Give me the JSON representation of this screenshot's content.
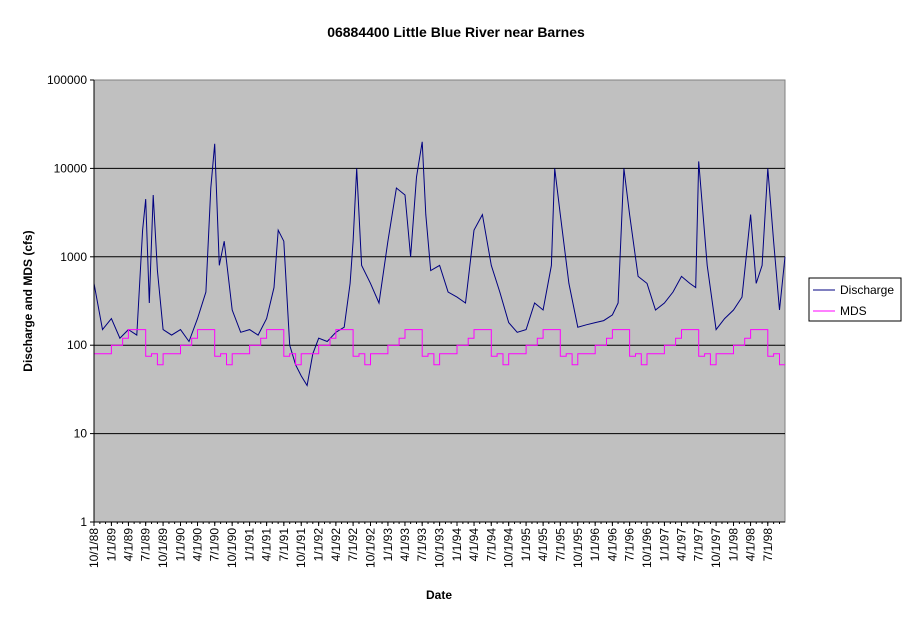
{
  "chart_data": {
    "type": "line",
    "title": "06884400 Little Blue River near Barnes",
    "xlabel": "Date",
    "ylabel": "Discharge and MDS (cfs)",
    "yscale": "log",
    "ylim": [
      1,
      100000
    ],
    "y_ticks": [
      "1",
      "10",
      "100",
      "1000",
      "10000",
      "100000"
    ],
    "x_ticks": [
      "10/1/88",
      "1/1/89",
      "4/1/89",
      "7/1/89",
      "10/1/89",
      "1/1/90",
      "4/1/90",
      "7/1/90",
      "10/1/90",
      "1/1/91",
      "4/1/91",
      "7/1/91",
      "10/1/91",
      "1/1/92",
      "4/1/92",
      "7/1/92",
      "10/1/92",
      "1/1/93",
      "4/1/93",
      "7/1/93",
      "10/1/93",
      "1/1/94",
      "4/1/94",
      "7/1/94",
      "10/1/94",
      "1/1/95",
      "4/1/95",
      "7/1/95",
      "10/1/95",
      "1/1/96",
      "4/1/96",
      "7/1/96",
      "10/1/96",
      "1/1/97",
      "4/1/97",
      "7/1/97",
      "10/1/97",
      "1/1/98",
      "4/1/98",
      "7/1/98"
    ],
    "grid": "horizontal",
    "plot_background": "#C0C0C0",
    "legend": {
      "position": "right"
    },
    "series": [
      {
        "name": "Discharge",
        "color": "#000080",
        "x": [
          "10/1/88",
          "11/15/88",
          "1/1/89",
          "2/15/89",
          "4/1/89",
          "5/15/89",
          "6/15/89",
          "7/1/89",
          "7/20/89",
          "8/10/89",
          "9/1/89",
          "10/1/89",
          "11/15/89",
          "1/1/90",
          "2/15/90",
          "4/1/90",
          "5/15/90",
          "6/10/90",
          "7/1/90",
          "7/25/90",
          "8/20/90",
          "10/1/90",
          "11/15/90",
          "1/1/91",
          "2/15/91",
          "4/1/91",
          "5/10/91",
          "6/1/91",
          "7/1/91",
          "8/1/91",
          "9/1/91",
          "10/1/91",
          "11/1/91",
          "12/1/91",
          "1/1/92",
          "2/15/92",
          "4/1/92",
          "5/15/92",
          "6/15/92",
          "7/1/92",
          "7/20/92",
          "8/15/92",
          "10/1/92",
          "11/15/92",
          "1/1/93",
          "2/15/93",
          "4/1/93",
          "5/1/93",
          "6/1/93",
          "7/1/93",
          "7/20/93",
          "8/15/93",
          "10/1/93",
          "11/15/93",
          "1/1/94",
          "2/15/94",
          "4/1/94",
          "5/15/94",
          "7/1/94",
          "8/15/94",
          "10/1/94",
          "11/15/94",
          "1/1/95",
          "2/15/95",
          "4/1/95",
          "5/15/95",
          "6/1/95",
          "7/1/95",
          "8/15/95",
          "10/1/95",
          "11/15/95",
          "1/1/96",
          "2/15/96",
          "4/1/96",
          "5/1/96",
          "6/1/96",
          "7/1/96",
          "8/15/96",
          "10/1/96",
          "11/15/96",
          "1/1/97",
          "2/15/97",
          "4/1/97",
          "5/15/97",
          "6/15/97",
          "7/1/97",
          "8/15/97",
          "10/1/97",
          "11/15/97",
          "1/1/98",
          "2/15/98",
          "4/1/98",
          "5/1/98",
          "6/1/98",
          "7/1/98",
          "8/1/98",
          "9/1/98",
          "9/30/98"
        ],
        "values": [
          500,
          150,
          200,
          120,
          150,
          130,
          2000,
          4500,
          300,
          5000,
          700,
          150,
          130,
          150,
          110,
          200,
          400,
          6000,
          19000,
          800,
          1500,
          250,
          140,
          150,
          130,
          200,
          450,
          2000,
          1500,
          100,
          60,
          45,
          35,
          80,
          120,
          110,
          140,
          160,
          500,
          1500,
          10000,
          800,
          500,
          300,
          1500,
          6000,
          5000,
          1000,
          8000,
          20000,
          3000,
          700,
          800,
          400,
          350,
          300,
          2000,
          3000,
          800,
          400,
          180,
          140,
          150,
          300,
          250,
          800,
          10000,
          3000,
          500,
          160,
          170,
          180,
          190,
          220,
          300,
          10000,
          3000,
          600,
          500,
          250,
          300,
          400,
          600,
          500,
          450,
          12000,
          800,
          150,
          200,
          250,
          350,
          3000,
          500,
          800,
          10000,
          1500,
          250,
          1000
        ]
      },
      {
        "name": "MDS",
        "color": "#FF00FF",
        "x": [
          "10/1/88",
          "11/1/88",
          "12/1/88",
          "1/1/89",
          "2/1/89",
          "3/1/89",
          "4/1/89",
          "5/1/89",
          "6/1/89",
          "7/1/89",
          "8/1/89",
          "9/1/89",
          "10/1/89",
          "11/1/89",
          "12/1/89",
          "1/1/90",
          "2/1/90",
          "3/1/90",
          "4/1/90",
          "5/1/90",
          "6/1/90",
          "7/1/90",
          "8/1/90",
          "9/1/90",
          "10/1/90",
          "11/1/90",
          "12/1/90",
          "1/1/91",
          "2/1/91",
          "3/1/91",
          "4/1/91",
          "5/1/91",
          "6/1/91",
          "7/1/91",
          "8/1/91",
          "9/1/91",
          "10/1/91",
          "11/1/91",
          "12/1/91",
          "1/1/92",
          "2/1/92",
          "3/1/92",
          "4/1/92",
          "5/1/92",
          "6/1/92",
          "7/1/92",
          "8/1/92",
          "9/1/92",
          "10/1/92",
          "11/1/92",
          "12/1/92",
          "1/1/93",
          "2/1/93",
          "3/1/93",
          "4/1/93",
          "5/1/93",
          "6/1/93",
          "7/1/93",
          "8/1/93",
          "9/1/93",
          "10/1/93",
          "11/1/93",
          "12/1/93",
          "1/1/94",
          "2/1/94",
          "3/1/94",
          "4/1/94",
          "5/1/94",
          "6/1/94",
          "7/1/94",
          "8/1/94",
          "9/1/94",
          "10/1/94",
          "11/1/94",
          "12/1/94",
          "1/1/95",
          "2/1/95",
          "3/1/95",
          "4/1/95",
          "5/1/95",
          "6/1/95",
          "7/1/95",
          "8/1/95",
          "9/1/95",
          "10/1/95",
          "11/1/95",
          "12/1/95",
          "1/1/96",
          "2/1/96",
          "3/1/96",
          "4/1/96",
          "5/1/96",
          "6/1/96",
          "7/1/96",
          "8/1/96",
          "9/1/96",
          "10/1/96",
          "11/1/96",
          "12/1/96",
          "1/1/97",
          "2/1/97",
          "3/1/97",
          "4/1/97",
          "5/1/97",
          "6/1/97",
          "7/1/97",
          "8/1/97",
          "9/1/97",
          "10/1/97",
          "11/1/97",
          "12/1/97",
          "1/1/98",
          "2/1/98",
          "3/1/98",
          "4/1/98",
          "5/1/98",
          "6/1/98",
          "7/1/98",
          "8/1/98",
          "9/1/98",
          "9/30/98"
        ],
        "values": [
          80,
          80,
          80,
          100,
          100,
          120,
          150,
          150,
          150,
          75,
          80,
          60,
          80,
          80,
          80,
          100,
          100,
          120,
          150,
          150,
          150,
          75,
          80,
          60,
          80,
          80,
          80,
          100,
          100,
          120,
          150,
          150,
          150,
          75,
          80,
          60,
          80,
          80,
          80,
          100,
          100,
          120,
          150,
          150,
          150,
          75,
          80,
          60,
          80,
          80,
          80,
          100,
          100,
          120,
          150,
          150,
          150,
          75,
          80,
          60,
          80,
          80,
          80,
          100,
          100,
          120,
          150,
          150,
          150,
          75,
          80,
          60,
          80,
          80,
          80,
          100,
          100,
          120,
          150,
          150,
          150,
          75,
          80,
          60,
          80,
          80,
          80,
          100,
          100,
          120,
          150,
          150,
          150,
          75,
          80,
          60,
          80,
          80,
          80,
          100,
          100,
          120,
          150,
          150,
          150,
          75,
          80,
          60,
          80,
          80,
          80,
          100,
          100,
          120,
          150,
          150,
          150,
          75,
          80,
          60,
          60
        ]
      }
    ]
  }
}
